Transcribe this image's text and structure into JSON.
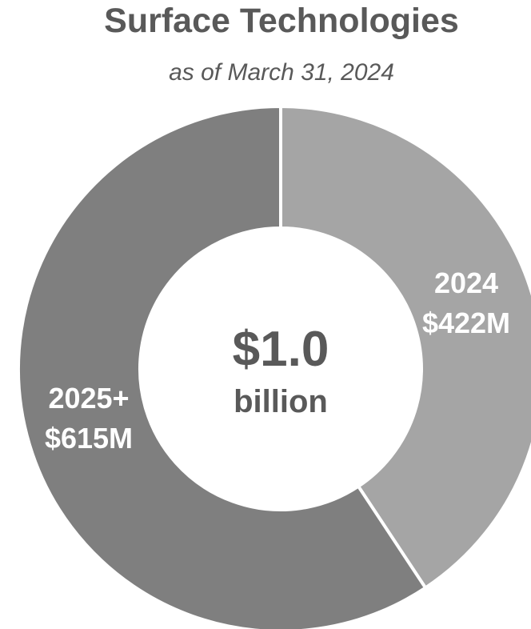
{
  "chart_data": {
    "type": "pie",
    "title": "Surface Technologies",
    "subtitle": "as of March 31, 2024",
    "center_value": "$1.0",
    "center_unit": "billion",
    "donut": true,
    "slices": [
      {
        "category": "2024",
        "label_value": "$422M",
        "value": 422,
        "color": "#a5a5a5"
      },
      {
        "category": "2025+",
        "label_value": "$615M",
        "value": 615,
        "color": "#7f7f7f"
      }
    ],
    "separator_color": "#ffffff"
  }
}
